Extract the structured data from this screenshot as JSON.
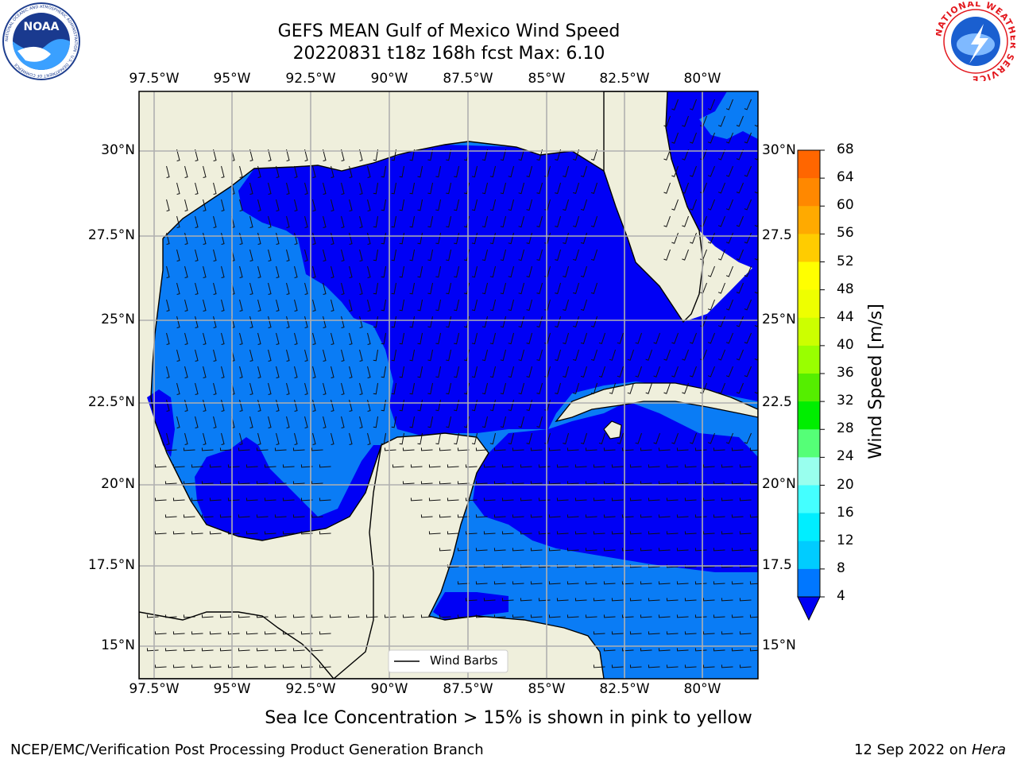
{
  "title_line1": "GEFS MEAN Gulf of Mexico Wind Speed",
  "title_line2": "20220831 t18z 168h fcst   Max: 6.10",
  "lon_labels": [
    "97.5°W",
    "95°W",
    "92.5°W",
    "90°W",
    "87.5°W",
    "85°W",
    "82.5°W",
    "80°W"
  ],
  "lat_labels": [
    "30°N",
    "27.5°N",
    "25°N",
    "22.5°N",
    "20°N",
    "17.5°N",
    "15°N"
  ],
  "right_lat_labels": [
    "30°N",
    "27.5",
    "25°N",
    "22.5",
    "20°N",
    "17.5",
    "15°N"
  ],
  "legend_label": "Wind Barbs",
  "colorbar": {
    "label": "Wind Speed [m/s]",
    "ticks": [
      "68",
      "64",
      "60",
      "56",
      "52",
      "48",
      "44",
      "40",
      "36",
      "32",
      "28",
      "24",
      "20",
      "16",
      "12",
      "8",
      "4"
    ],
    "colors": [
      "#ff0000",
      "#ff3300",
      "#ff6600",
      "#ff8800",
      "#ffaa00",
      "#ffcc00",
      "#ffff00",
      "#eeff00",
      "#ccff00",
      "#99ff00",
      "#55ee00",
      "#00ee00",
      "#55ff77",
      "#99ffee",
      "#44ffff",
      "#00eeff",
      "#00ccff",
      "#0077ff",
      "#0000ff"
    ]
  },
  "note": "Sea Ice Concentration > 15% is shown in pink to yellow",
  "footer_left": "NCEP/EMC/Verification Post Processing Product Generation Branch",
  "footer_right_date": "12 Sep 2022 on ",
  "footer_right_host": "Hera",
  "logos": {
    "noaa_text": "NOAA",
    "noaa_ring": "NATIONAL OCEANIC AND ATMOSPHERIC ADMINISTRATION · U.S. DEPARTMENT OF COMMERCE",
    "nws_ring": "NATIONAL WEATHER SERVICE"
  },
  "map_colors": {
    "land": "#efefdc",
    "wind_4_8": "#0a7cf5",
    "wind_lt4": "#0000f5",
    "grid": "#b0b0b0"
  }
}
